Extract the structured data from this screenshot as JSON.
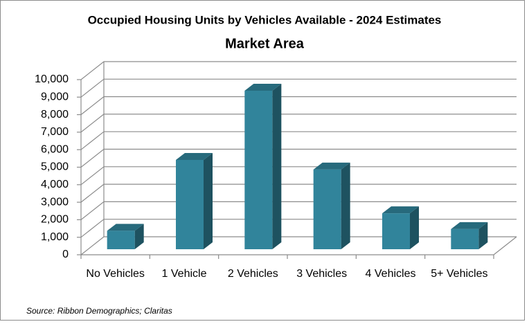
{
  "chart_data": {
    "type": "bar3d",
    "title": "Occupied Housing Units by Vehicles Available - 2024 Estimates",
    "subtitle": "Market Area",
    "source": "Source: Ribbon Demographics; Claritas",
    "categories": [
      "No Vehicles",
      "1 Vehicle",
      "2 Vehicles",
      "3 Vehicles",
      "4 Vehicles",
      "5+ Vehicles"
    ],
    "values": [
      1050,
      5100,
      9050,
      4550,
      2050,
      1150
    ],
    "color": "#31849b",
    "ylim": [
      0,
      10000
    ],
    "yticks": [
      0,
      {
        "value": 1000,
        "label": "1,000"
      },
      {
        "value": 2000,
        "label": "2,000"
      },
      {
        "value": 3000,
        "label": "3,000"
      },
      {
        "value": 4000,
        "label": "4,000"
      },
      {
        "value": 5000,
        "label": "5,000"
      },
      {
        "value": 6000,
        "label": "6,000"
      },
      {
        "value": 7000,
        "label": "7,000"
      },
      {
        "value": 8000,
        "label": "8,000"
      },
      {
        "value": 9000,
        "label": "9,000"
      },
      {
        "value": 10000,
        "label": "10,000"
      }
    ],
    "grid": true
  }
}
